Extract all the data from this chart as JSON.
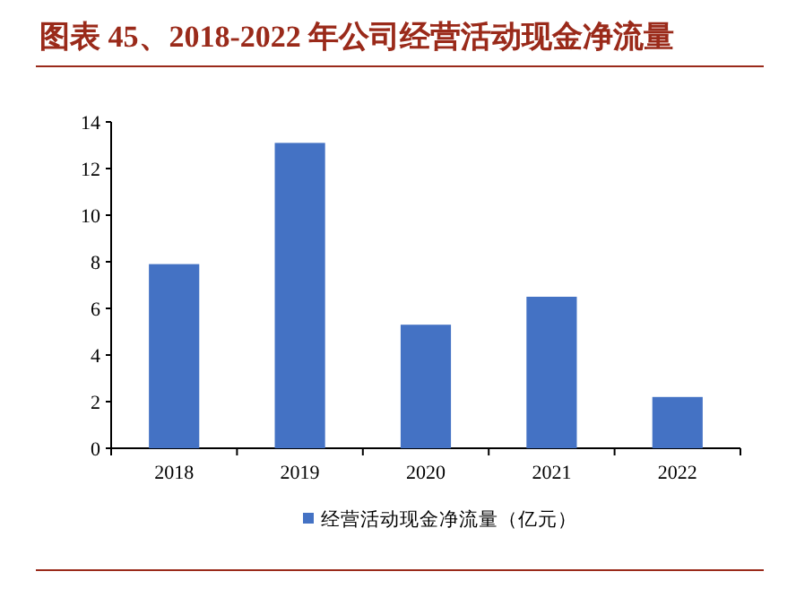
{
  "chart_data": {
    "type": "bar",
    "title": "图表 45、2018-2022 年公司经营活动现金净流量",
    "categories": [
      "2018",
      "2019",
      "2020",
      "2021",
      "2022"
    ],
    "series": [
      {
        "name": "经营活动现金净流量（亿元）",
        "color": "#4472c4",
        "values": [
          7.9,
          13.1,
          5.3,
          6.5,
          2.2
        ]
      }
    ],
    "ylim": [
      0,
      14
    ],
    "yticks": [
      0,
      2,
      4,
      6,
      8,
      10,
      12,
      14
    ],
    "grid": false,
    "legend": "bottom"
  }
}
